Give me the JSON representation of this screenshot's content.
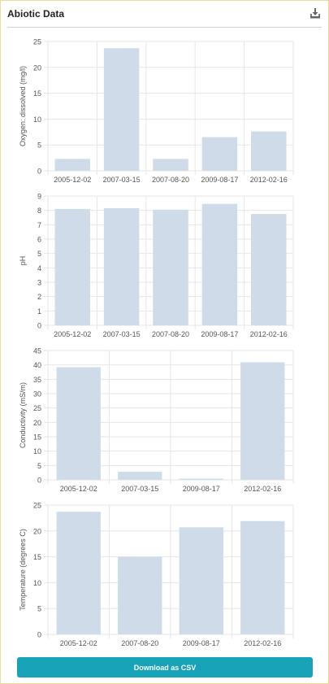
{
  "header": {
    "title": "Abiotic Data",
    "download_icon": "download-icon"
  },
  "footer": {
    "csv_button_label": "Download as CSV"
  },
  "colors": {
    "bar": "#cfdbe8",
    "grid": "#e6e6e6",
    "axis_text": "#555555",
    "button": "#17a2b8"
  },
  "chart_data": [
    {
      "type": "bar",
      "categories": [
        "2005-12-02",
        "2007-03-15",
        "2007-08-20",
        "2009-08-17",
        "2012-02-16"
      ],
      "values": [
        2.3,
        23.7,
        2.3,
        6.5,
        7.6
      ],
      "ylabel": "Oxygen: dissolved (mg/l)",
      "ylim": [
        0,
        25
      ],
      "yticks": [
        0,
        5,
        10,
        15,
        20,
        25
      ],
      "grid": true
    },
    {
      "type": "bar",
      "categories": [
        "2005-12-02",
        "2007-03-15",
        "2007-08-20",
        "2009-08-17",
        "2012-02-16"
      ],
      "values": [
        8.1,
        8.15,
        8.05,
        8.45,
        7.75
      ],
      "ylabel": "pH",
      "ylim": [
        0,
        9
      ],
      "yticks": [
        0,
        1,
        2,
        3,
        4,
        5,
        6,
        7,
        8,
        9
      ],
      "grid": true
    },
    {
      "type": "bar",
      "categories": [
        "2005-12-02",
        "2007-03-15",
        "2009-08-17",
        "2012-02-16"
      ],
      "values": [
        39.2,
        2.8,
        0.4,
        40.9
      ],
      "ylabel": "Conductivity (mS/m)",
      "ylim": [
        0,
        45
      ],
      "yticks": [
        0,
        5,
        10,
        15,
        20,
        25,
        30,
        35,
        40,
        45
      ],
      "grid": true
    },
    {
      "type": "bar",
      "categories": [
        "2005-12-02",
        "2007-08-20",
        "2009-08-17",
        "2012-02-16"
      ],
      "values": [
        23.7,
        15.0,
        20.7,
        21.9
      ],
      "ylabel": "Temperature (degrees C)",
      "ylim": [
        0,
        25
      ],
      "yticks": [
        0,
        5,
        10,
        15,
        20,
        25
      ],
      "grid": true
    }
  ]
}
